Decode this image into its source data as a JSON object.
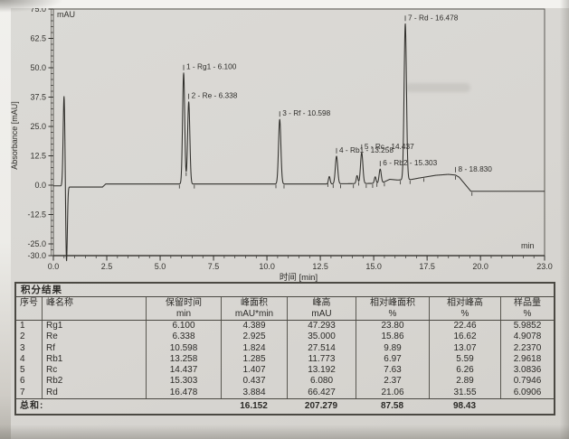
{
  "colors": {
    "paper": "#d8d6d2",
    "ink": "#33322e",
    "table_border": "#4b4943"
  },
  "chart_data": {
    "type": "line",
    "title": "",
    "ylabel": "Absorbance [mAU]",
    "xlabel": "时间 [min]",
    "y_unit_label": "mAU",
    "x_unit_label": "min",
    "xlim": [
      0,
      23
    ],
    "ylim": [
      -30,
      75
    ],
    "x_ticks": [
      0,
      2.5,
      5,
      7.5,
      10,
      12.5,
      15,
      17.5,
      20,
      23
    ],
    "x_tick_labels": [
      "0.0",
      "2.5",
      "5.0",
      "7.5",
      "10.0",
      "12.5",
      "15.0",
      "17.5",
      "20.0",
      "23.0"
    ],
    "y_ticks": [
      75,
      62.5,
      50,
      37.5,
      25,
      12.5,
      0,
      -12.5,
      -25,
      -30
    ],
    "y_tick_labels": [
      "75.0",
      "62.5",
      "50.0",
      "37.5",
      "25.0",
      "12.5",
      "0.0",
      "-12.5",
      "-25.0",
      "-30.0"
    ],
    "x_minor_step": 0.5,
    "y_minor_step": 2.5,
    "grid": false,
    "peaks": [
      {
        "no": 1,
        "name": "Rg1",
        "rt": 6.1,
        "height_mau": 47.293,
        "sigma": 0.05,
        "label": "1 - Rg1 - 6.100"
      },
      {
        "no": 2,
        "name": "Re",
        "rt": 6.338,
        "height_mau": 35.0,
        "sigma": 0.052,
        "label": "2 - Re - 6.338"
      },
      {
        "no": 3,
        "name": "Rf",
        "rt": 10.598,
        "height_mau": 27.514,
        "sigma": 0.055,
        "label": "3 - Rf - 10.598"
      },
      {
        "no": 4,
        "name": "Rb1",
        "rt": 13.258,
        "height_mau": 11.773,
        "sigma": 0.055,
        "label": "4 - Rb1 - 13.258"
      },
      {
        "no": 5,
        "name": "Rc",
        "rt": 14.437,
        "height_mau": 13.192,
        "sigma": 0.055,
        "label": "5 - Rc - 14.437"
      },
      {
        "no": 6,
        "name": "Rb2",
        "rt": 15.303,
        "height_mau": 6.08,
        "sigma": 0.05,
        "label": "6 - Rb2 - 15.303"
      },
      {
        "no": 7,
        "name": "Rd",
        "rt": 16.478,
        "height_mau": 66.427,
        "sigma": 0.055,
        "label": "7 - Rd - 16.478"
      },
      {
        "no": 8,
        "name": "",
        "rt": 18.83,
        "height_mau": 0,
        "sigma": 0,
        "label": "8 - 18.830"
      }
    ],
    "minor_peaks": [
      {
        "rt": 12.92,
        "h": 3.2,
        "sigma": 0.04
      },
      {
        "rt": 14.22,
        "h": 3.4,
        "sigma": 0.04
      },
      {
        "rt": 15.07,
        "h": 2.8,
        "sigma": 0.04
      }
    ],
    "injection_artifact": [
      {
        "rt": 0.5,
        "h": 38.5,
        "sigma": 0.042
      },
      {
        "rt": 0.615,
        "h": -32.5,
        "sigma": 0.038
      }
    ],
    "baseline_anchors": [
      [
        0,
        -0.3
      ],
      [
        0.42,
        -0.3
      ],
      [
        0.78,
        -0.8
      ],
      [
        2.3,
        -0.8
      ],
      [
        2.45,
        0.5
      ],
      [
        12.9,
        0.5
      ],
      [
        13.4,
        0.6
      ],
      [
        15.35,
        0.8
      ],
      [
        15.75,
        2.5
      ],
      [
        16.1,
        2.2
      ],
      [
        16.75,
        2.4
      ],
      [
        17.1,
        3.0
      ],
      [
        17.9,
        4.2
      ],
      [
        18.5,
        4.6
      ],
      [
        18.83,
        4.3
      ],
      [
        19.0,
        3.4
      ],
      [
        19.55,
        -2.6
      ],
      [
        23,
        -2.6
      ]
    ],
    "integration_marks": [
      5.9,
      6.22,
      6.6,
      10.42,
      10.8,
      12.85,
      13.1,
      13.45,
      14.05,
      14.3,
      14.65,
      14.95,
      15.15,
      15.5,
      16.25,
      16.7,
      17.35,
      18.83,
      19.6
    ]
  },
  "table": {
    "title": "积分结果",
    "columns": [
      {
        "label": "序号",
        "unit": ""
      },
      {
        "label": "峰名称",
        "unit": ""
      },
      {
        "label": "保留时间",
        "unit": "min"
      },
      {
        "label": "峰面积",
        "unit": "mAU*min"
      },
      {
        "label": "峰高",
        "unit": "mAU"
      },
      {
        "label": "相对峰面积",
        "unit": "%"
      },
      {
        "label": "相对峰高",
        "unit": "%"
      },
      {
        "label": "样品量",
        "unit": "%"
      }
    ],
    "rows": [
      [
        "1",
        "Rg1",
        "6.100",
        "4.389",
        "47.293",
        "23.80",
        "22.46",
        "5.9852"
      ],
      [
        "2",
        "Re",
        "6.338",
        "2.925",
        "35.000",
        "15.86",
        "16.62",
        "4.9078"
      ],
      [
        "3",
        "Rf",
        "10.598",
        "1.824",
        "27.514",
        "9.89",
        "13.07",
        "2.2370"
      ],
      [
        "4",
        "Rb1",
        "13.258",
        "1.285",
        "11.773",
        "6.97",
        "5.59",
        "2.9618"
      ],
      [
        "5",
        "Rc",
        "14.437",
        "1.407",
        "13.192",
        "7.63",
        "6.26",
        "3.0836"
      ],
      [
        "6",
        "Rb2",
        "15.303",
        "0.437",
        "6.080",
        "2.37",
        "2.89",
        "0.7946"
      ],
      [
        "7",
        "Rd",
        "16.478",
        "3.884",
        "66.427",
        "21.06",
        "31.55",
        "6.0906"
      ]
    ],
    "total": {
      "label": "总和:",
      "values": [
        "16.152",
        "207.279",
        "87.58",
        "98.43",
        ""
      ]
    }
  }
}
